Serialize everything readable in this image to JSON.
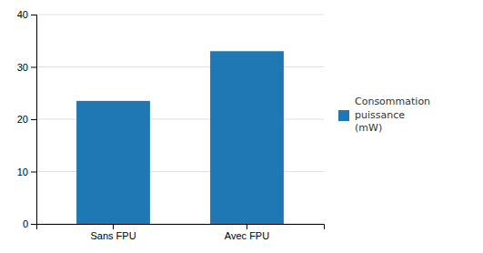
{
  "chart_data": {
    "type": "bar",
    "categories": [
      "Sans FPU",
      "Avec FPU"
    ],
    "series": [
      {
        "name": "Consommation puissance\n(mW)",
        "values": [
          23.5,
          33.0
        ]
      }
    ],
    "ylim": [
      0,
      40
    ],
    "yticks": [
      0,
      10,
      20,
      30,
      40
    ],
    "grid": true,
    "legend": "right"
  }
}
